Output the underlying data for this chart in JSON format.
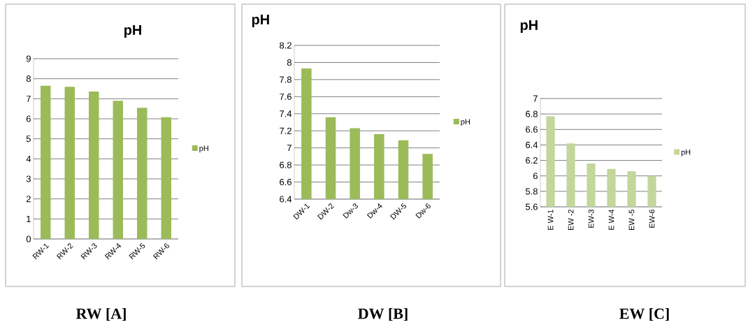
{
  "chart_data": [
    {
      "type": "bar",
      "title": "pH",
      "categories": [
        "RW-1",
        "RW-2",
        "RW-3",
        "RW-4",
        "RW-5",
        "RW-6"
      ],
      "series": [
        {
          "name": "pH",
          "color": "#9bbb59",
          "values": [
            7.65,
            7.6,
            7.36,
            6.9,
            6.55,
            6.08
          ]
        }
      ],
      "ylim": [
        0,
        9
      ],
      "yticks": [
        0,
        1,
        2,
        3,
        4,
        5,
        6,
        7,
        8,
        9
      ],
      "grid": "y",
      "legend": "right",
      "annotations": [
        "RW [A]"
      ]
    },
    {
      "type": "bar",
      "title": "pH",
      "categories": [
        "DW-1",
        "DW-2",
        "Dw-3",
        "Dw-4",
        "DW-5",
        "Dw-6"
      ],
      "series": [
        {
          "name": "pH",
          "color": "#9bbb59",
          "values": [
            7.93,
            7.36,
            7.23,
            7.16,
            7.09,
            6.93
          ]
        }
      ],
      "ylim": [
        6.4,
        8.2
      ],
      "yticks": [
        6.4,
        6.6,
        6.8,
        7,
        7.2,
        7.4,
        7.6,
        7.8,
        8,
        8.2
      ],
      "grid": "y",
      "legend": "right",
      "annotations": [
        "DW [B]"
      ]
    },
    {
      "type": "bar",
      "title": "pH",
      "categories": [
        "E W-1",
        "EW -2",
        "EW-3",
        "E W-4",
        "EW -5",
        "EW-6"
      ],
      "series": [
        {
          "name": "pH",
          "color": "#c3d69b",
          "values": [
            6.77,
            6.42,
            6.16,
            6.09,
            6.06,
            6.0
          ]
        }
      ],
      "ylim": [
        5.6,
        7
      ],
      "yticks": [
        5.6,
        5.8,
        6,
        6.2,
        6.4,
        6.6,
        6.8,
        7
      ],
      "grid": "y",
      "legend": "right",
      "annotations": [
        "EW [C]"
      ]
    }
  ]
}
